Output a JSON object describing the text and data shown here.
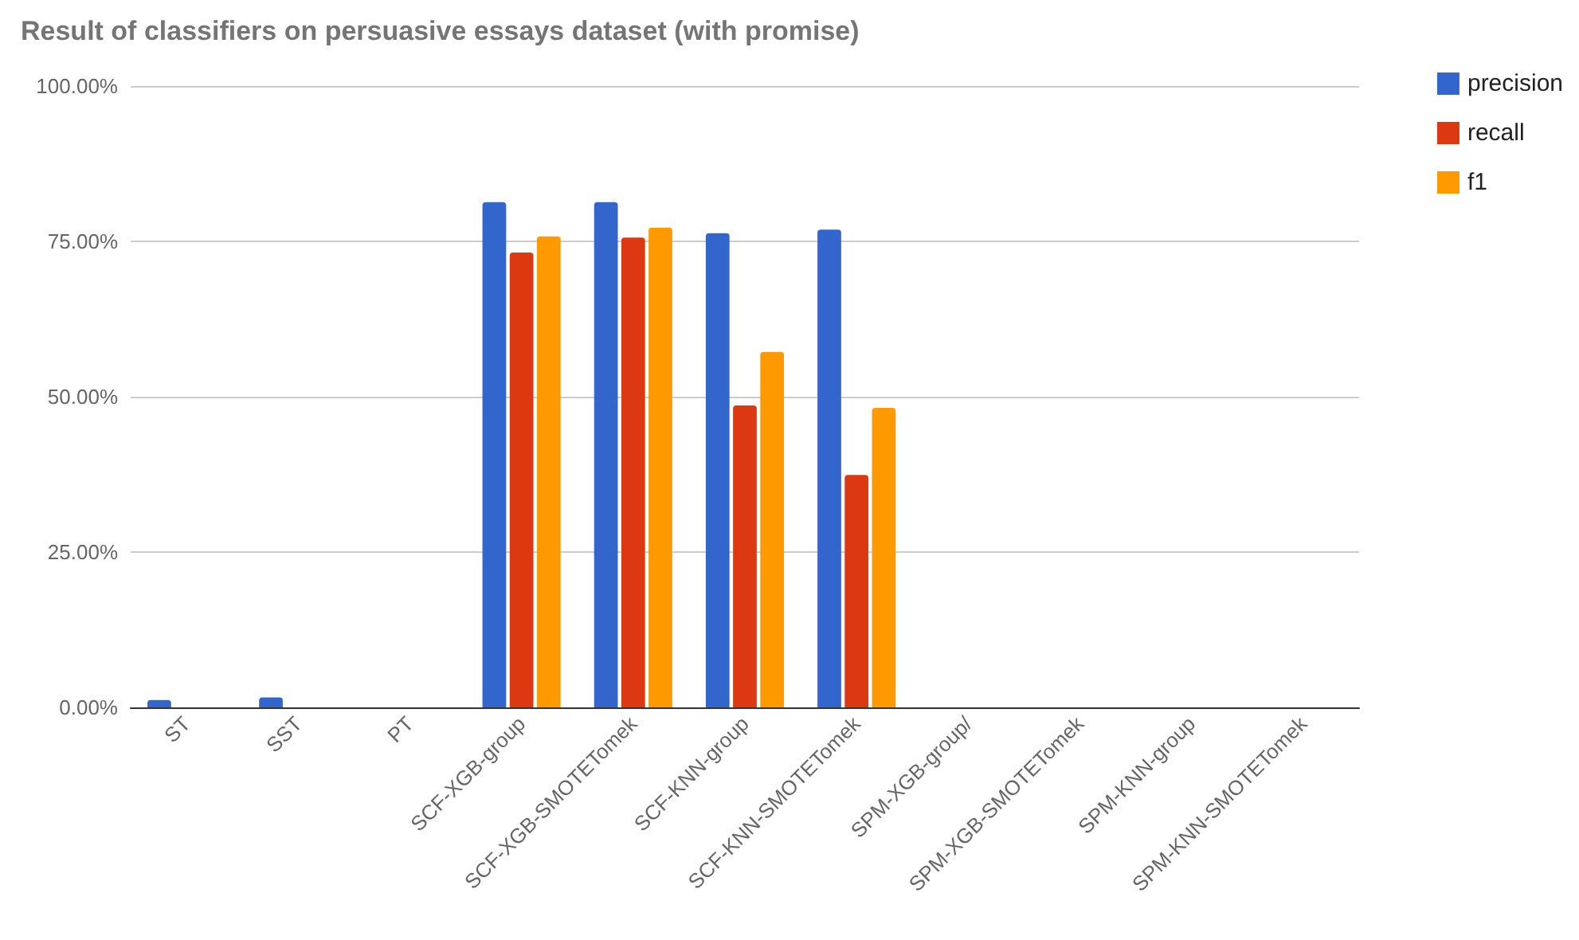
{
  "chart_data": {
    "type": "bar",
    "title": "Result of classifiers on persuasive essays dataset (with promise)",
    "categories": [
      "ST",
      "SST",
      "PT",
      "SCF-XGB-group",
      "SCF-XGB-SMOTETomek",
      "SCF-KNN-group",
      "SCF-KNN-SMOTETomek",
      "SPM-XGB-group/",
      "SPM-XGB-SMOTETomek",
      "SPM-KNN-group",
      "SPM-KNN-SMOTETomek"
    ],
    "series": [
      {
        "name": "precision",
        "color": "#3366cc",
        "values": [
          1.2,
          1.6,
          0,
          81.3,
          81.3,
          76.3,
          76.9,
          0,
          0,
          0,
          0
        ]
      },
      {
        "name": "recall",
        "color": "#dc3912",
        "values": [
          0,
          0,
          0,
          73.2,
          75.6,
          48.6,
          37.4,
          0,
          0,
          0,
          0
        ]
      },
      {
        "name": "f1",
        "color": "#ff9900",
        "values": [
          0,
          0,
          0,
          75.8,
          77.2,
          57.2,
          48.2,
          0,
          0,
          0,
          0
        ]
      }
    ],
    "ylim": [
      0,
      100
    ],
    "yticks": [
      {
        "value": 0,
        "label": "0.00%"
      },
      {
        "value": 25,
        "label": "25.00%"
      },
      {
        "value": 50,
        "label": "50.00%"
      },
      {
        "value": 75,
        "label": "75.00%"
      },
      {
        "value": 100,
        "label": "100.00%"
      }
    ],
    "grid": "y",
    "legend": "top right"
  }
}
